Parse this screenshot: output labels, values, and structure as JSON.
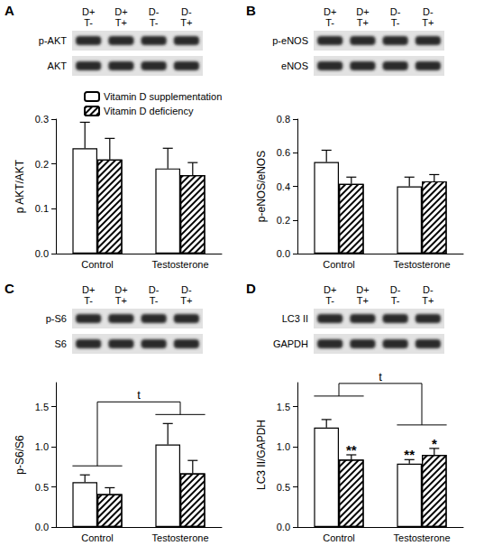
{
  "chart_data": [
    {
      "panel": "A",
      "type": "bar",
      "blot": {
        "lanes": [
          [
            "D+",
            "T-"
          ],
          [
            "D+",
            "T+"
          ],
          [
            "D-",
            "T-"
          ],
          [
            "D-",
            "T+"
          ]
        ],
        "rows": [
          "p-AKT",
          "AKT"
        ]
      },
      "categories": [
        "Control",
        "Testosterone"
      ],
      "series": [
        {
          "name": "Vitamin D supplementation",
          "color": "#ffffff",
          "values": [
            0.235,
            0.19
          ],
          "errors": [
            0.058,
            0.045
          ]
        },
        {
          "name": "Vitamin D deficiency",
          "color": "#ffffff",
          "marker": "hatch",
          "values": [
            0.21,
            0.175
          ],
          "errors": [
            0.047,
            0.028
          ]
        }
      ],
      "ylabel": "p AKT/AKT",
      "ylim": [
        0,
        0.3
      ],
      "yticks": [
        {
          "value": 0,
          "label": "0.0"
        },
        0.1,
        0.2,
        0.3
      ],
      "grid": false,
      "legend": "top"
    },
    {
      "panel": "B",
      "type": "bar",
      "blot": {
        "lanes": [
          [
            "D+",
            "T-"
          ],
          [
            "D+",
            "T+"
          ],
          [
            "D-",
            "T-"
          ],
          [
            "D-",
            "T+"
          ]
        ],
        "rows": [
          "p-eNOS",
          "eNOS"
        ]
      },
      "categories": [
        "Control",
        "Testosterone"
      ],
      "series": [
        {
          "name": "Vitamin D supplementation",
          "color": "#ffffff",
          "values": [
            0.545,
            0.4
          ],
          "errors": [
            0.07,
            0.055
          ]
        },
        {
          "name": "Vitamin D deficiency",
          "color": "#ffffff",
          "marker": "hatch",
          "values": [
            0.415,
            0.43
          ],
          "errors": [
            0.04,
            0.04
          ]
        }
      ],
      "ylabel": "p-eNOS/eNOS",
      "ylim": [
        0,
        0.8
      ],
      "yticks": [
        {
          "value": 0,
          "label": "0.0"
        },
        0.2,
        0.4,
        0.6,
        0.8
      ],
      "grid": false
    },
    {
      "panel": "C",
      "type": "bar",
      "blot": {
        "lanes": [
          [
            "D+",
            "T-"
          ],
          [
            "D+",
            "T+"
          ],
          [
            "D-",
            "T-"
          ],
          [
            "D-",
            "T+"
          ]
        ],
        "rows": [
          "p-S6",
          "S6"
        ]
      },
      "categories": [
        "Control",
        "Testosterone"
      ],
      "series": [
        {
          "name": "Vitamin D supplementation",
          "color": "#ffffff",
          "values": [
            0.56,
            1.03
          ],
          "errors": [
            0.09,
            0.26
          ]
        },
        {
          "name": "Vitamin D deficiency",
          "color": "#ffffff",
          "marker": "hatch",
          "values": [
            0.41,
            0.67
          ],
          "errors": [
            0.08,
            0.16
          ]
        }
      ],
      "ylabel": "p-S6/S6",
      "ylim": [
        0,
        1.8
      ],
      "yticks": [
        {
          "value": 0,
          "label": "0.0"
        },
        0.5,
        {
          "value": 1,
          "label": "1.0"
        },
        1.5
      ],
      "bracket_label": "t",
      "grid": false
    },
    {
      "panel": "D",
      "type": "bar",
      "blot": {
        "lanes": [
          [
            "D+",
            "T-"
          ],
          [
            "D+",
            "T+"
          ],
          [
            "D-",
            "T-"
          ],
          [
            "D-",
            "T+"
          ]
        ],
        "rows": [
          "LC3 II",
          "GAPDH"
        ]
      },
      "categories": [
        "Control",
        "Testosterone"
      ],
      "series": [
        {
          "name": "Vitamin D supplementation",
          "color": "#ffffff",
          "values": [
            1.24,
            0.79
          ],
          "errors": [
            0.1,
            0.05
          ],
          "significance": [
            null,
            "**"
          ]
        },
        {
          "name": "Vitamin D deficiency",
          "color": "#ffffff",
          "marker": "hatch",
          "values": [
            0.84,
            0.9
          ],
          "errors": [
            0.06,
            0.08
          ],
          "significance": [
            "**",
            "*"
          ]
        }
      ],
      "ylabel": "LC3 II/GAPDH",
      "ylim": [
        0,
        1.8
      ],
      "yticks": [
        {
          "value": 0,
          "label": "0.0"
        },
        0.5,
        {
          "value": 1,
          "label": "1.0"
        },
        1.5
      ],
      "bracket_label": "t",
      "grid": false
    }
  ]
}
